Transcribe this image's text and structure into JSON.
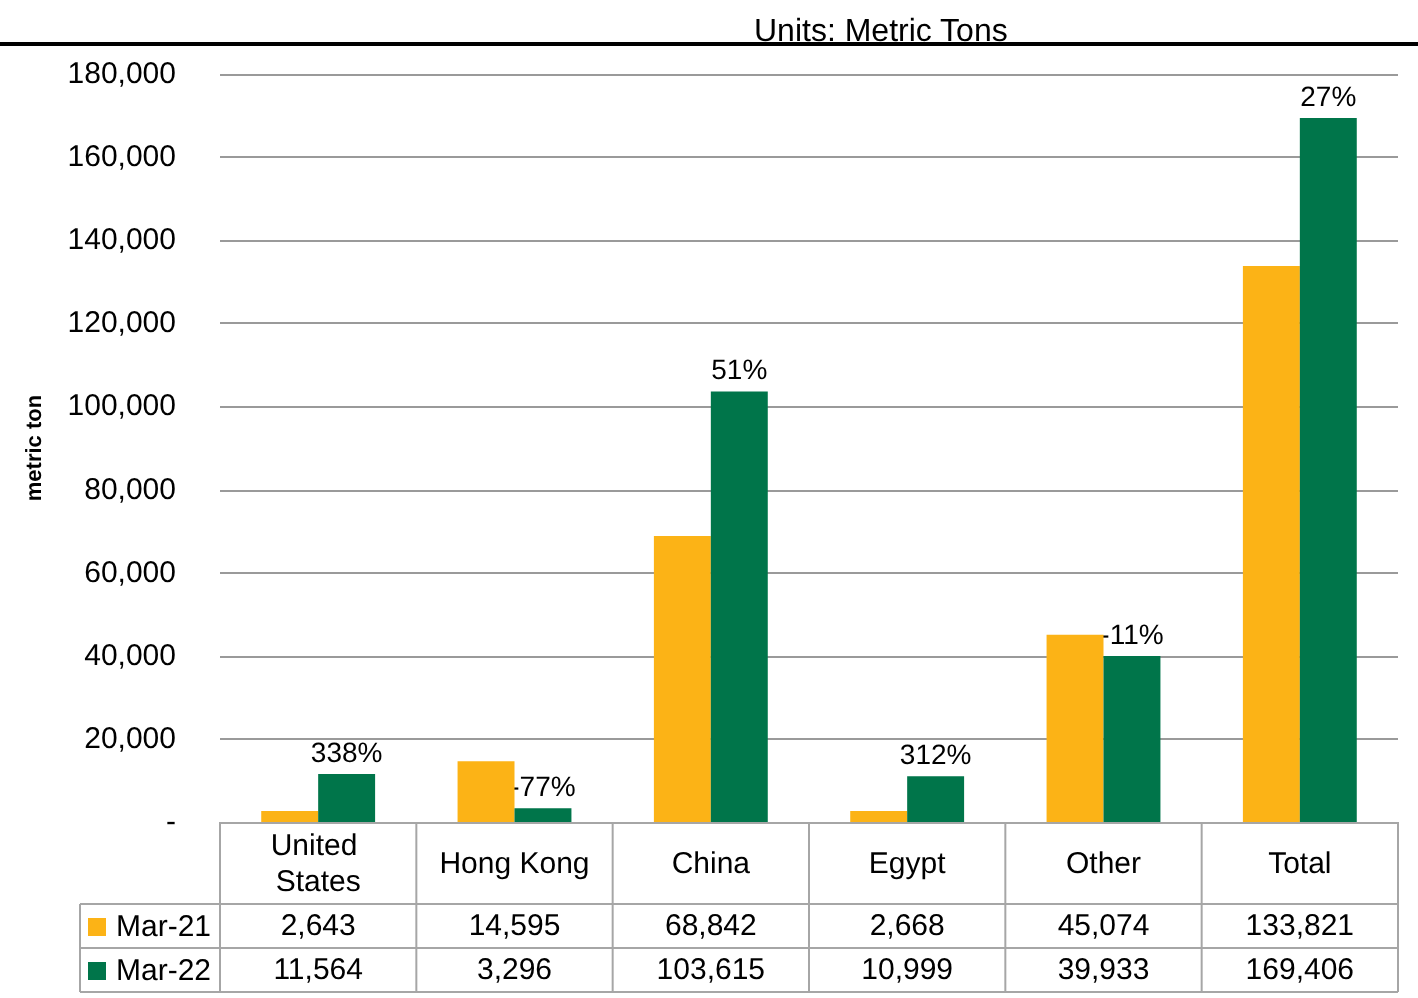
{
  "chart_data": {
    "type": "bar",
    "title": "Units: Metric Tons",
    "ylabel": "metric ton",
    "categories": [
      "United States",
      "Hong Kong",
      "China",
      "Egypt",
      "Other",
      "Total"
    ],
    "series": [
      {
        "name": "Mar-21",
        "color": "#fcb316",
        "values": [
          2643,
          14595,
          68842,
          2668,
          45074,
          133821
        ],
        "value_labels": [
          "2,643",
          "14,595",
          "68,842",
          "2,668",
          "45,074",
          "133,821"
        ]
      },
      {
        "name": "Mar-22",
        "color": "#00754a",
        "values": [
          11564,
          3296,
          103615,
          10999,
          39933,
          169406
        ],
        "value_labels": [
          "11,564",
          "3,296",
          "103,615",
          "10,999",
          "39,933",
          "169,406"
        ]
      }
    ],
    "ylim": [
      0,
      180000
    ],
    "yticks": [
      {
        "value": 0,
        "label": "-"
      },
      {
        "value": 20000,
        "label": "20,000"
      },
      {
        "value": 40000,
        "label": "40,000"
      },
      {
        "value": 60000,
        "label": "60,000"
      },
      {
        "value": 80000,
        "label": "80,000"
      },
      {
        "value": 100000,
        "label": "100,000"
      },
      {
        "value": 120000,
        "label": "120,000"
      },
      {
        "value": 140000,
        "label": "140,000"
      },
      {
        "value": 160000,
        "label": "160,000"
      },
      {
        "value": 180000,
        "label": "180,000"
      }
    ],
    "grid": "y",
    "legend": "bottom left",
    "annotations": [
      {
        "text": "338%",
        "x": "United States",
        "y": 11564
      },
      {
        "text": "-77%",
        "x": "Hong Kong",
        "y": 3296
      },
      {
        "text": "51%",
        "x": "China",
        "y": 103615
      },
      {
        "text": "312%",
        "x": "Egypt",
        "y": 10999
      },
      {
        "text": "-11%",
        "x": "Other",
        "y": 39933
      },
      {
        "text": "27%",
        "x": "Total",
        "y": 169406
      }
    ]
  }
}
